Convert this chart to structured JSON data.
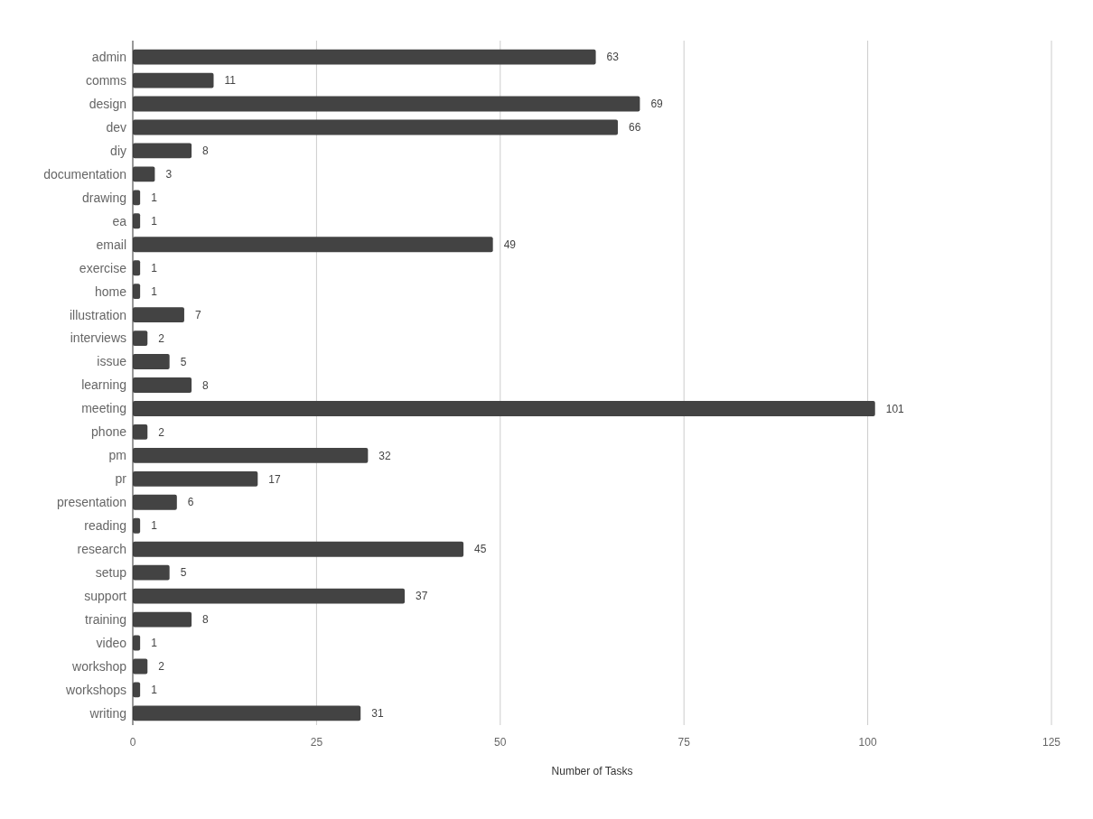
{
  "chart_data": {
    "type": "bar",
    "orientation": "horizontal",
    "xlabel": "Number of Tasks",
    "categories": [
      "admin",
      "comms",
      "design",
      "dev",
      "diy",
      "documentation",
      "drawing",
      "ea",
      "email",
      "exercise",
      "home",
      "illustration",
      "interviews",
      "issue",
      "learning",
      "meeting",
      "phone",
      "pm",
      "pr",
      "presentation",
      "reading",
      "research",
      "setup",
      "support",
      "training",
      "video",
      "workshop",
      "workshops",
      "writing"
    ],
    "values": [
      63,
      11,
      69,
      66,
      8,
      3,
      1,
      1,
      49,
      1,
      1,
      7,
      2,
      5,
      8,
      101,
      2,
      32,
      17,
      6,
      1,
      45,
      5,
      37,
      8,
      1,
      2,
      1,
      31
    ],
    "color": "#434343",
    "xlim": [
      0,
      125
    ],
    "xticks": [
      0,
      25,
      50,
      75,
      100,
      125
    ],
    "grid": "x",
    "data_labels": true
  }
}
